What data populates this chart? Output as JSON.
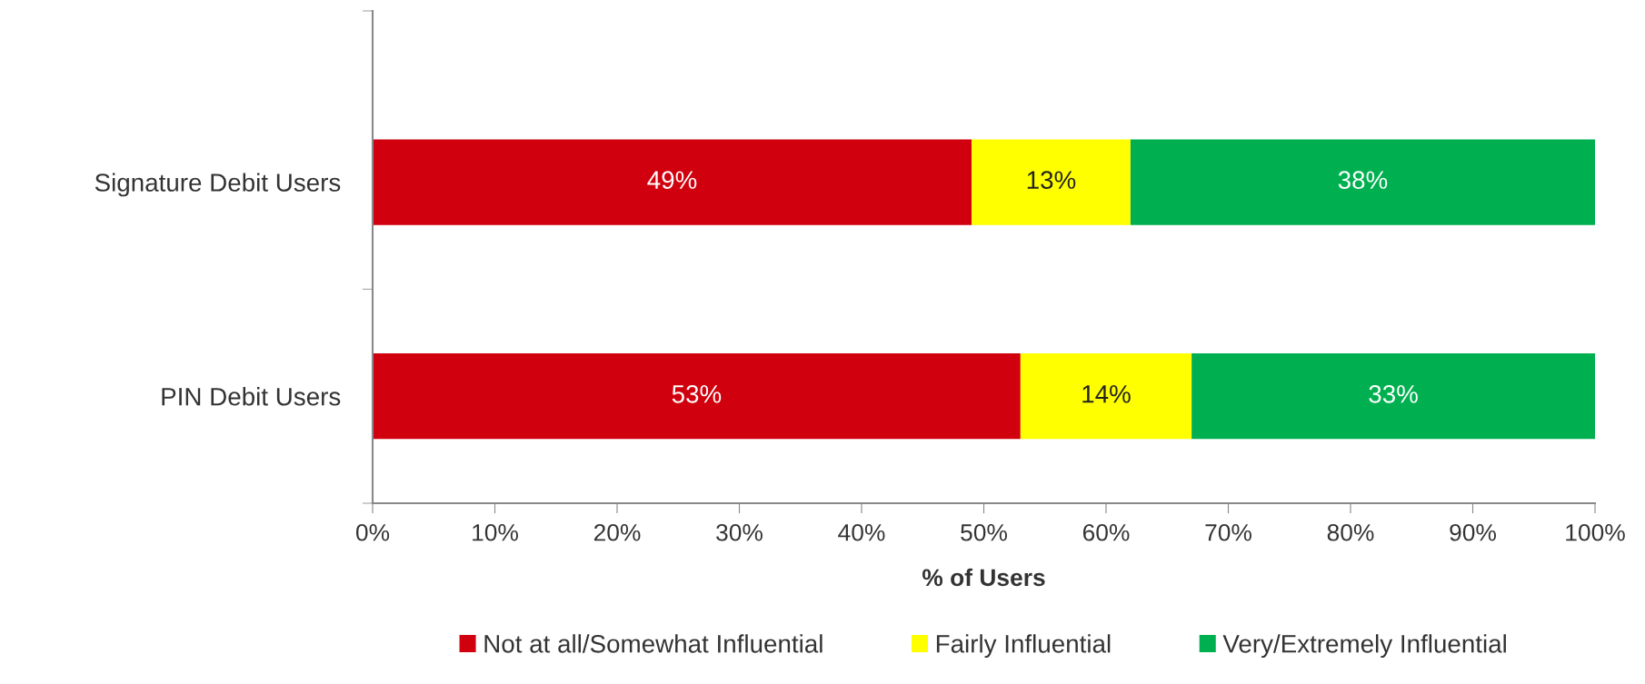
{
  "chart_data": {
    "type": "bar",
    "orientation": "horizontal",
    "stacked": true,
    "categories": [
      "Signature Debit Users",
      "PIN Debit Users"
    ],
    "series": [
      {
        "name": "Not at all/Somewhat Influential",
        "color": "#d0000e",
        "values": [
          49,
          53
        ],
        "value_labels": [
          "49%",
          "53%"
        ]
      },
      {
        "name": "Fairly Influential",
        "color": "#ffff00",
        "values": [
          13,
          14
        ],
        "value_labels": [
          "13%",
          "14%"
        ]
      },
      {
        "name": "Very/Extremely Influential",
        "color": "#00b050",
        "values": [
          38,
          33
        ],
        "value_labels": [
          "38%",
          "33%"
        ]
      }
    ],
    "xlabel": "% of Users",
    "xlim": [
      0,
      100
    ],
    "xticks": [
      {
        "value": 0,
        "label": "0%"
      },
      {
        "value": 10,
        "label": "10%"
      },
      {
        "value": 20,
        "label": "20%"
      },
      {
        "value": 30,
        "label": "30%"
      },
      {
        "value": 40,
        "label": "40%"
      },
      {
        "value": 50,
        "label": "50%"
      },
      {
        "value": 60,
        "label": "60%"
      },
      {
        "value": 70,
        "label": "70%"
      },
      {
        "value": 80,
        "label": "80%"
      },
      {
        "value": 90,
        "label": "90%"
      },
      {
        "value": 100,
        "label": "100%"
      }
    ],
    "grid": false,
    "legend": "bottom"
  }
}
